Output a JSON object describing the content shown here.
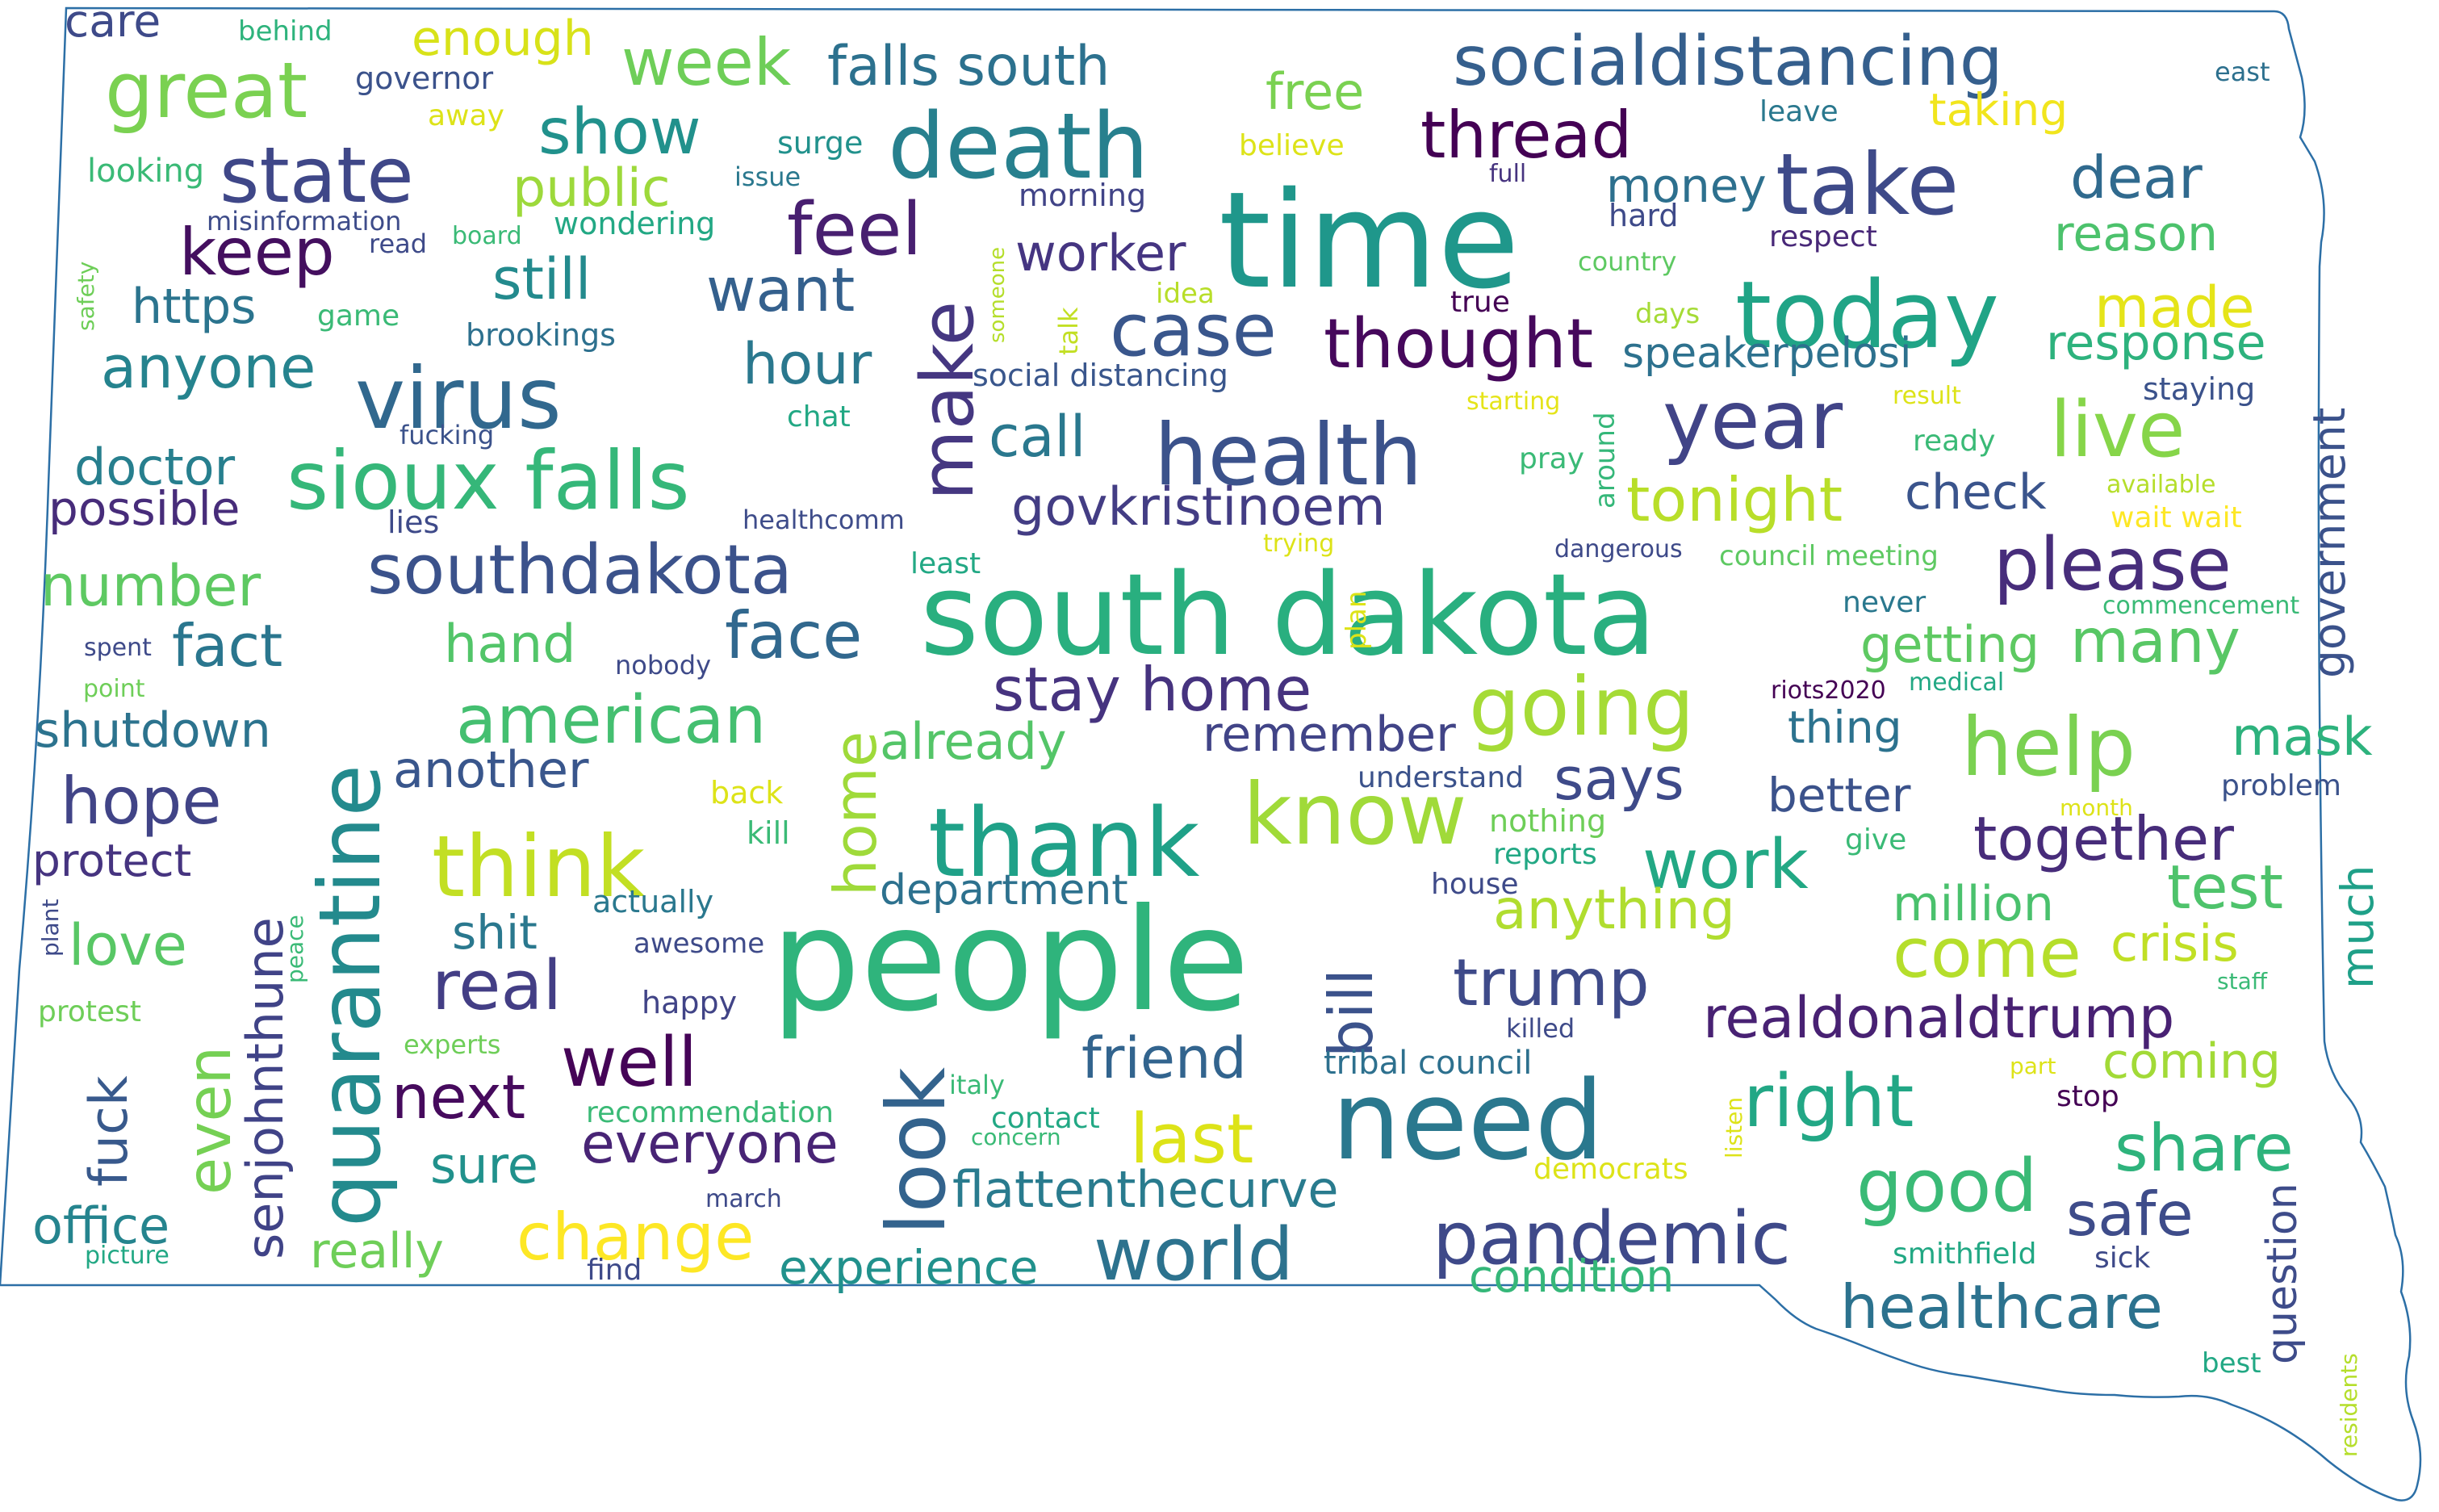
{
  "cloud": {
    "shape": "South Dakota state outline",
    "outline_color": "#2c6fa6",
    "palette": "viridis",
    "words": [
      {
        "text": "people",
        "weight": 100,
        "color": "#2fb47c"
      },
      {
        "text": "time",
        "weight": 95,
        "color": "#1f978b"
      },
      {
        "text": "south dakota",
        "weight": 88,
        "color": "#29af7f"
      },
      {
        "text": "need",
        "weight": 80,
        "color": "#2a788e"
      },
      {
        "text": "thank",
        "weight": 72,
        "color": "#1fa188"
      },
      {
        "text": "today",
        "weight": 70,
        "color": "#20a486"
      },
      {
        "text": "quarantine",
        "weight": 68,
        "color": "#238a8d"
      },
      {
        "text": "death",
        "weight": 65,
        "color": "#27808e"
      },
      {
        "text": "look",
        "weight": 62,
        "color": "#33638d"
      },
      {
        "text": "know",
        "weight": 62,
        "color": "#a0da39"
      },
      {
        "text": "health",
        "weight": 60,
        "color": "#3b528b"
      },
      {
        "text": "take",
        "weight": 58,
        "color": "#3e4a89"
      },
      {
        "text": "virus",
        "weight": 56,
        "color": "#31688e"
      },
      {
        "text": "think",
        "weight": 56,
        "color": "#c2df23"
      },
      {
        "text": "sioux falls",
        "weight": 56,
        "color": "#35b779"
      },
      {
        "text": "going",
        "weight": 55,
        "color": "#a5db36"
      },
      {
        "text": "help",
        "weight": 55,
        "color": "#7ad151"
      },
      {
        "text": "pandemic",
        "weight": 52,
        "color": "#3e4989"
      },
      {
        "text": "socialdistancing",
        "weight": 52,
        "color": "#355f8d"
      },
      {
        "text": "great",
        "weight": 50,
        "color": "#7ad151"
      },
      {
        "text": "state",
        "weight": 50,
        "color": "#3f4788"
      },
      {
        "text": "year",
        "weight": 50,
        "color": "#414487"
      },
      {
        "text": "please",
        "weight": 50,
        "color": "#472d7b"
      },
      {
        "text": "feel",
        "weight": 48,
        "color": "#481f70"
      },
      {
        "text": "world",
        "weight": 48,
        "color": "#2c728e"
      },
      {
        "text": "good",
        "weight": 48,
        "color": "#3aba76"
      },
      {
        "text": "live",
        "weight": 48,
        "color": "#86d549"
      },
      {
        "text": "thread",
        "weight": 46,
        "color": "#440154"
      },
      {
        "text": "make",
        "weight": 46,
        "color": "#453781"
      },
      {
        "text": "case",
        "weight": 46,
        "color": "#39568c"
      },
      {
        "text": "thought",
        "weight": 46,
        "color": "#46085c"
      },
      {
        "text": "southdakota",
        "weight": 46,
        "color": "#3b528b"
      },
      {
        "text": "last",
        "weight": 46,
        "color": "#dde318"
      },
      {
        "text": "right",
        "weight": 46,
        "color": "#22a785"
      },
      {
        "text": "well",
        "weight": 44,
        "color": "#450457"
      },
      {
        "text": "real",
        "weight": 44,
        "color": "#433e85"
      },
      {
        "text": "work",
        "weight": 44,
        "color": "#22a884"
      },
      {
        "text": "come",
        "weight": 44,
        "color": "#b5de2b"
      },
      {
        "text": "american",
        "weight": 42,
        "color": "#44bf70"
      },
      {
        "text": "change",
        "weight": 42,
        "color": "#fde725"
      },
      {
        "text": "keep",
        "weight": 42,
        "color": "#440f5f"
      },
      {
        "text": "week",
        "weight": 42,
        "color": "#6ece58"
      },
      {
        "text": "trump",
        "weight": 42,
        "color": "#3e4a89"
      },
      {
        "text": "want",
        "weight": 40,
        "color": "#34608d"
      },
      {
        "text": "show",
        "weight": 40,
        "color": "#21918c"
      },
      {
        "text": "face",
        "weight": 40,
        "color": "#31688e"
      },
      {
        "text": "hope",
        "weight": 40,
        "color": "#414487"
      },
      {
        "text": "healthcare",
        "weight": 40,
        "color": "#2c728e"
      },
      {
        "text": "stay home",
        "weight": 40,
        "color": "#46337f"
      },
      {
        "text": "safe",
        "weight": 40,
        "color": "#3e4c8a"
      },
      {
        "text": "share",
        "weight": 40,
        "color": "#2eb37c"
      },
      {
        "text": "even",
        "weight": 40,
        "color": "#75d054"
      },
      {
        "text": "home",
        "weight": 38,
        "color": "#9fda3a"
      },
      {
        "text": "bill",
        "weight": 38,
        "color": "#3b528b"
      },
      {
        "text": "next",
        "weight": 38,
        "color": "#460a5d"
      },
      {
        "text": "dear",
        "weight": 38,
        "color": "#306a8e"
      },
      {
        "text": "together",
        "weight": 38,
        "color": "#472c7a"
      },
      {
        "text": "realdonaldtrump",
        "weight": 38,
        "color": "#482173"
      },
      {
        "text": "tonight",
        "weight": 38,
        "color": "#b8de29"
      },
      {
        "text": "made",
        "weight": 38,
        "color": "#e5e419"
      },
      {
        "text": "test",
        "weight": 38,
        "color": "#4ec36b"
      },
      {
        "text": "many",
        "weight": 38,
        "color": "#58c765"
      },
      {
        "text": "fact",
        "weight": 38,
        "color": "#2a768e"
      },
      {
        "text": "call",
        "weight": 36,
        "color": "#2a788e"
      },
      {
        "text": "anyone",
        "weight": 36,
        "color": "#25838e"
      },
      {
        "text": "falls south",
        "weight": 36,
        "color": "#2c718e"
      },
      {
        "text": "says",
        "weight": 36,
        "color": "#3e4a89"
      },
      {
        "text": "friend",
        "weight": 36,
        "color": "#32648e"
      },
      {
        "text": "senjohnthune",
        "weight": 36,
        "color": "#404387"
      },
      {
        "text": "everyone",
        "weight": 36,
        "color": "#482475"
      },
      {
        "text": "still",
        "weight": 36,
        "color": "#238a8d"
      },
      {
        "text": "hour",
        "weight": 34,
        "color": "#2a788e"
      },
      {
        "text": "worker",
        "weight": 34,
        "color": "#453581"
      },
      {
        "text": "govkristinoem",
        "weight": 34,
        "color": "#433d84"
      },
      {
        "text": "response",
        "weight": 34,
        "color": "#2db27d"
      },
      {
        "text": "another",
        "weight": 34,
        "color": "#39568c"
      },
      {
        "text": "hand",
        "weight": 34,
        "color": "#52c569"
      },
      {
        "text": "shutdown",
        "weight": 34,
        "color": "#2c738e"
      },
      {
        "text": "number",
        "weight": 34,
        "color": "#5ec962"
      },
      {
        "text": "mask",
        "weight": 34,
        "color": "#2db27d"
      },
      {
        "text": "love",
        "weight": 34,
        "color": "#58c765"
      },
      {
        "text": "remember",
        "weight": 34,
        "color": "#414487"
      },
      {
        "text": "anything",
        "weight": 34,
        "color": "#b0dd2f"
      },
      {
        "text": "million",
        "weight": 34,
        "color": "#4ac16d"
      },
      {
        "text": "crisis",
        "weight": 34,
        "color": "#c0df25"
      },
      {
        "text": "coming",
        "weight": 32,
        "color": "#a2da37"
      },
      {
        "text": "already",
        "weight": 32,
        "color": "#54c568"
      },
      {
        "text": "flattenthecurve",
        "weight": 32,
        "color": "#297b8e"
      },
      {
        "text": "government",
        "weight": 32,
        "color": "#3b528b"
      },
      {
        "text": "public",
        "weight": 32,
        "color": "#9dd93b"
      },
      {
        "text": "money",
        "weight": 32,
        "color": "#2d708e"
      },
      {
        "text": "sure",
        "weight": 32,
        "color": "#21918c"
      },
      {
        "text": "question",
        "weight": 32,
        "color": "#3e4c8a"
      },
      {
        "text": "office",
        "weight": 32,
        "color": "#25848e"
      },
      {
        "text": "doctor",
        "weight": 32,
        "color": "#277f8e"
      },
      {
        "text": "protect",
        "weight": 32,
        "color": "#463480"
      },
      {
        "text": "fuck",
        "weight": 32,
        "color": "#38598c"
      },
      {
        "text": "reason",
        "weight": 32,
        "color": "#4cc26c"
      },
      {
        "text": "https",
        "weight": 32,
        "color": "#2b748e"
      },
      {
        "text": "check",
        "weight": 32,
        "color": "#3a548c"
      },
      {
        "text": "gettingmany",
        "weight": 0,
        "color": "#5ec962"
      },
      {
        "text": "getting",
        "weight": 32,
        "color": "#5ec962"
      },
      {
        "text": "free",
        "weight": 32,
        "color": "#7ad151"
      },
      {
        "text": "taking",
        "weight": 30,
        "color": "#f1e51d"
      },
      {
        "text": "speakerpelosi",
        "weight": 30,
        "color": "#2d718e"
      },
      {
        "text": "department",
        "weight": 30,
        "color": "#2d718e"
      },
      {
        "text": "experience",
        "weight": 30,
        "color": "#21918c"
      },
      {
        "text": "much",
        "weight": 30,
        "color": "#1fa088"
      },
      {
        "text": "really",
        "weight": 30,
        "color": "#6ece58"
      },
      {
        "text": "shit",
        "weight": 30,
        "color": "#2a788e"
      },
      {
        "text": "better",
        "weight": 30,
        "color": "#3b528b"
      },
      {
        "text": "possible",
        "weight": 30,
        "color": "#472c7a"
      },
      {
        "text": "condition",
        "weight": 30,
        "color": "#35b779"
      },
      {
        "text": "enough",
        "weight": 30,
        "color": "#d8e219"
      },
      {
        "text": "care",
        "weight": 30,
        "color": "#3e4a89"
      },
      {
        "text": "thing",
        "weight": 28,
        "color": "#2c728e"
      },
      {
        "text": "social distancing",
        "weight": 22,
        "color": "#39568c"
      },
      {
        "text": "brookings",
        "weight": 22,
        "color": "#2d708e"
      },
      {
        "text": "east",
        "weight": 20,
        "color": "#2d708e"
      },
      {
        "text": "leave",
        "weight": 20,
        "color": "#2a788e"
      },
      {
        "text": "governor",
        "weight": 20,
        "color": "#3b528b"
      },
      {
        "text": "behind",
        "weight": 18,
        "color": "#2eb37c"
      },
      {
        "text": "away",
        "weight": 18,
        "color": "#dde318"
      },
      {
        "text": "surge",
        "weight": 20,
        "color": "#21918c"
      },
      {
        "text": "believe",
        "weight": 18,
        "color": "#dde318"
      },
      {
        "text": "looking",
        "weight": 20,
        "color": "#3aba76"
      },
      {
        "text": "issue",
        "weight": 18,
        "color": "#2a788e"
      },
      {
        "text": "morning",
        "weight": 20,
        "color": "#414487"
      },
      {
        "text": "full",
        "weight": 18,
        "color": "#46337f"
      },
      {
        "text": "hard",
        "weight": 20,
        "color": "#3e4a89"
      },
      {
        "text": "respect",
        "weight": 20,
        "color": "#482878"
      },
      {
        "text": "misinformation",
        "weight": 18,
        "color": "#3e4c8a"
      },
      {
        "text": "read",
        "weight": 18,
        "color": "#3e4a89"
      },
      {
        "text": "board",
        "weight": 16,
        "color": "#3aba76"
      },
      {
        "text": "wondering",
        "weight": 20,
        "color": "#22a884"
      },
      {
        "text": "country",
        "weight": 18,
        "color": "#5ec962"
      },
      {
        "text": "someone",
        "weight": 16,
        "color": "#b5de2b"
      },
      {
        "text": "talk",
        "weight": 18,
        "color": "#c2df23"
      },
      {
        "text": "idea",
        "weight": 18,
        "color": "#b8de29"
      },
      {
        "text": "true",
        "weight": 18,
        "color": "#440154"
      },
      {
        "text": "days",
        "weight": 18,
        "color": "#a5db36"
      },
      {
        "text": "staying",
        "weight": 20,
        "color": "#3b528b"
      },
      {
        "text": "safety",
        "weight": 14,
        "color": "#6ece58"
      },
      {
        "text": "game",
        "weight": 18,
        "color": "#3aba76"
      },
      {
        "text": "fucking",
        "weight": 16,
        "color": "#3b528b"
      },
      {
        "text": "chat",
        "weight": 18,
        "color": "#22a884"
      },
      {
        "text": "starting",
        "weight": 16,
        "color": "#e5e419"
      },
      {
        "text": "result",
        "weight": 16,
        "color": "#dde318"
      },
      {
        "text": "ready",
        "weight": 18,
        "color": "#3aba76"
      },
      {
        "text": "around",
        "weight": 18,
        "color": "#35b779"
      },
      {
        "text": "pray",
        "weight": 18,
        "color": "#3aba76"
      },
      {
        "text": "available",
        "weight": 16,
        "color": "#b5de2b"
      },
      {
        "text": "wait wait",
        "weight": 18,
        "color": "#fde725"
      },
      {
        "text": "lies",
        "weight": 18,
        "color": "#3e4a89"
      },
      {
        "text": "healthcomm",
        "weight": 16,
        "color": "#3e4c8a"
      },
      {
        "text": "least",
        "weight": 18,
        "color": "#22a884"
      },
      {
        "text": "trying",
        "weight": 16,
        "color": "#dde318"
      },
      {
        "text": "dangerous",
        "weight": 16,
        "color": "#3e4a89"
      },
      {
        "text": "council meeting",
        "weight": 18,
        "color": "#5ec962"
      },
      {
        "text": "commencement",
        "weight": 16,
        "color": "#3aba76"
      },
      {
        "text": "plan",
        "weight": 18,
        "color": "#dde318"
      },
      {
        "text": "never",
        "weight": 18,
        "color": "#2a788e"
      },
      {
        "text": "spent",
        "weight": 16,
        "color": "#3e4a89"
      },
      {
        "text": "nobody",
        "weight": 16,
        "color": "#3e4a89"
      },
      {
        "text": "point",
        "weight": 16,
        "color": "#6ece58"
      },
      {
        "text": "riots2020",
        "weight": 16,
        "color": "#440154"
      },
      {
        "text": "medical",
        "weight": 16,
        "color": "#22a884"
      },
      {
        "text": "understand",
        "weight": 18,
        "color": "#3b528b"
      },
      {
        "text": "problem",
        "weight": 18,
        "color": "#3b528b"
      },
      {
        "text": "back",
        "weight": 18,
        "color": "#dde318"
      },
      {
        "text": "nothing",
        "weight": 18,
        "color": "#6ece58"
      },
      {
        "text": "month",
        "weight": 14,
        "color": "#dde318"
      },
      {
        "text": "kill",
        "weight": 18,
        "color": "#3aba76"
      },
      {
        "text": "reports",
        "weight": 18,
        "color": "#22a884"
      },
      {
        "text": "give",
        "weight": 18,
        "color": "#3aba76"
      },
      {
        "text": "house",
        "weight": 18,
        "color": "#3e4a89"
      },
      {
        "text": "actually",
        "weight": 18,
        "color": "#2a788e"
      },
      {
        "text": "plant",
        "weight": 14,
        "color": "#3e4a89"
      },
      {
        "text": "peace",
        "weight": 14,
        "color": "#3aba76"
      },
      {
        "text": "awesome",
        "weight": 18,
        "color": "#3e4a89"
      },
      {
        "text": "happy",
        "weight": 18,
        "color": "#414487"
      },
      {
        "text": "staff",
        "weight": 14,
        "color": "#3aba76"
      },
      {
        "text": "protest",
        "weight": 18,
        "color": "#6ece58"
      },
      {
        "text": "killed",
        "weight": 16,
        "color": "#3e4a89"
      },
      {
        "text": "experts",
        "weight": 16,
        "color": "#6ece58"
      },
      {
        "text": "italy",
        "weight": 16,
        "color": "#3aba76"
      },
      {
        "text": "tribal council",
        "weight": 20,
        "color": "#2d708e"
      },
      {
        "text": "part",
        "weight": 14,
        "color": "#dde318"
      },
      {
        "text": "recommendation",
        "weight": 18,
        "color": "#3aba76"
      },
      {
        "text": "contact",
        "weight": 18,
        "color": "#22a884"
      },
      {
        "text": "stop",
        "weight": 18,
        "color": "#440154"
      },
      {
        "text": "concern",
        "weight": 14,
        "color": "#3aba76"
      },
      {
        "text": "listen",
        "weight": 14,
        "color": "#dde318"
      },
      {
        "text": "democrats",
        "weight": 18,
        "color": "#dde318"
      },
      {
        "text": "march",
        "weight": 16,
        "color": "#3e4a89"
      },
      {
        "text": "smithfield",
        "weight": 18,
        "color": "#22a884"
      },
      {
        "text": "sick",
        "weight": 18,
        "color": "#3e4a89"
      },
      {
        "text": "picture",
        "weight": 16,
        "color": "#22a884"
      },
      {
        "text": "find",
        "weight": 18,
        "color": "#3e4a89"
      },
      {
        "text": "best",
        "weight": 18,
        "color": "#22a884"
      },
      {
        "text": "residents",
        "weight": 14,
        "color": "#b5de2b"
      }
    ]
  }
}
